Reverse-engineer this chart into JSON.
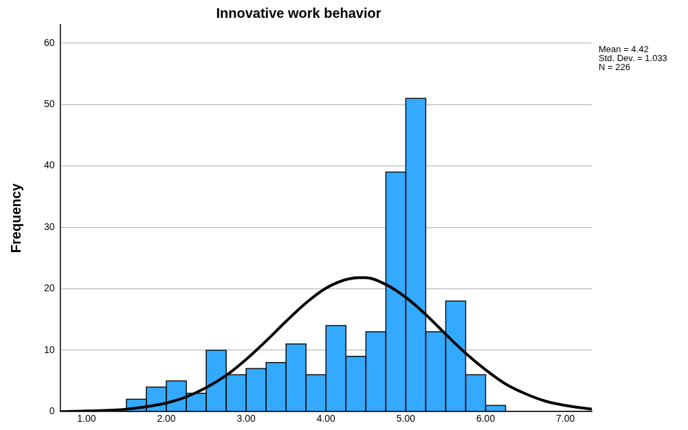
{
  "chart_data": {
    "type": "histogram",
    "title": "Innovative work behavior",
    "ylabel": "Frequency",
    "bins": [
      1.5,
      1.75,
      2.0,
      2.25,
      2.5,
      2.75,
      3.0,
      3.25,
      3.5,
      3.75,
      4.0,
      4.25,
      4.5,
      4.75,
      5.0,
      5.25,
      5.5,
      5.75,
      6.0,
      6.25
    ],
    "values": [
      2,
      4,
      5,
      3,
      10,
      6,
      7,
      8,
      11,
      6,
      14,
      9,
      13,
      39,
      51,
      13,
      18,
      6,
      1
    ],
    "color": "#33aaff",
    "series": [
      {
        "type": "line",
        "color": "#000000",
        "x": [
          0.67,
          1.0,
          1.5,
          2.0,
          2.25,
          2.5,
          2.75,
          3.0,
          3.25,
          3.5,
          3.75,
          4.0,
          4.25,
          4.42,
          4.5,
          4.75,
          5.0,
          5.25,
          5.5,
          5.75,
          6.0,
          6.25,
          6.5,
          6.75,
          7.0,
          7.33
        ],
        "values": [
          0.0,
          0.1,
          0.4,
          1.4,
          2.4,
          3.9,
          5.9,
          8.5,
          11.5,
          14.7,
          17.7,
          20.1,
          21.5,
          21.8,
          21.8,
          20.7,
          18.6,
          15.8,
          12.6,
          9.5,
          6.8,
          4.5,
          2.9,
          1.7,
          1.0,
          0.4
        ]
      }
    ],
    "xlim": [
      0.67,
      7.33
    ],
    "xticks": [
      {
        "value": 1,
        "label": "1.00"
      },
      {
        "value": 2,
        "label": "2.00"
      },
      {
        "value": 3,
        "label": "3.00"
      },
      {
        "value": 4,
        "label": "4.00"
      },
      {
        "value": 5,
        "label": "5.00"
      },
      {
        "value": 6,
        "label": "6.00"
      },
      {
        "value": 7,
        "label": "7.00"
      }
    ],
    "ylim": [
      0,
      63
    ],
    "yticks": [
      0,
      10,
      20,
      30,
      40,
      50,
      60
    ],
    "grid": "y",
    "legend": false,
    "marker": "none",
    "line_style": "solid",
    "annotations": [
      "Mean = 4.42",
      "Std. Dev. = 1.033",
      "N = 226"
    ]
  }
}
